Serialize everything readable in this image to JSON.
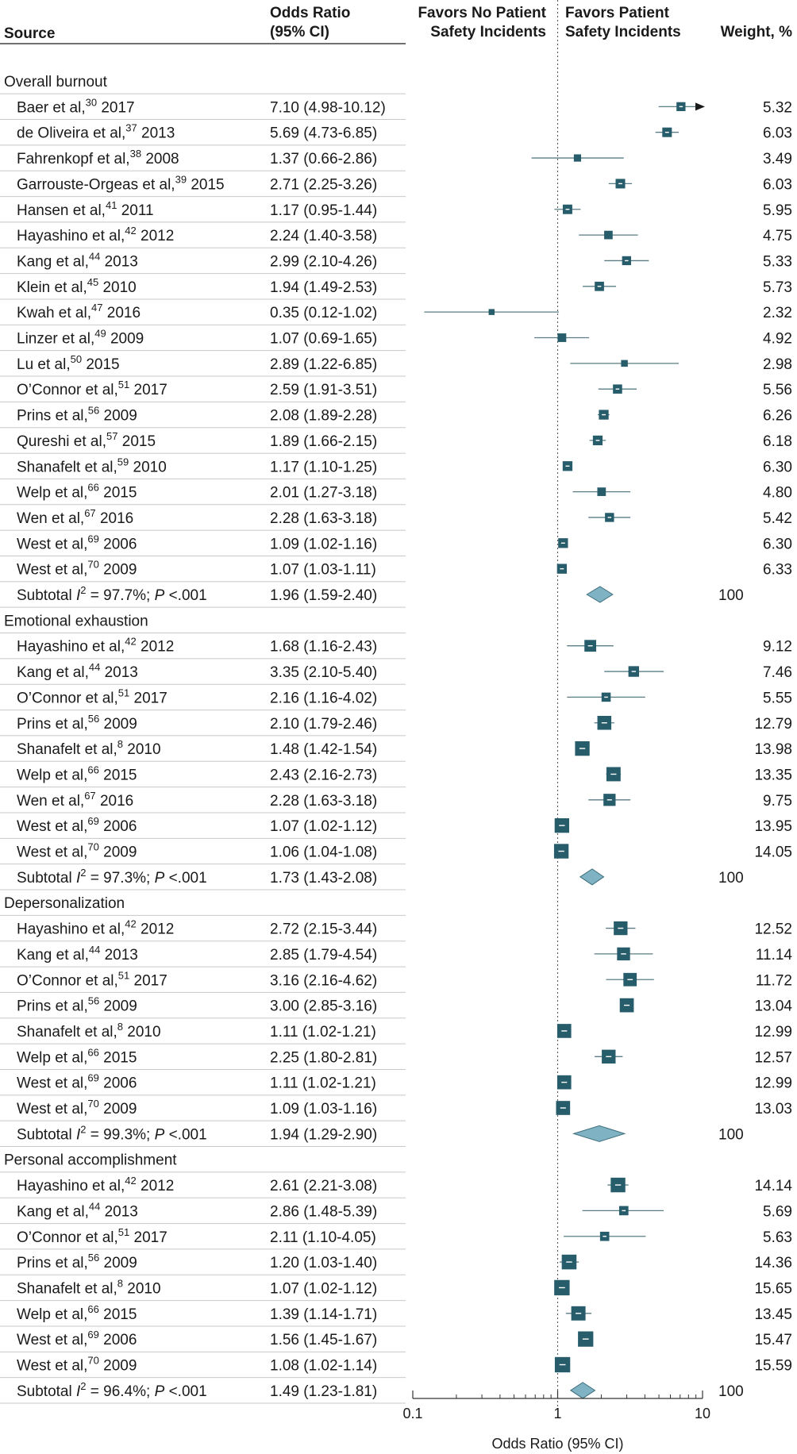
{
  "chart_data": {
    "type": "forest",
    "header": {
      "source": "Source",
      "or_line1": "Odds Ratio",
      "or_line2": "(95% CI)",
      "favors_left_line1": "Favors No Patient",
      "favors_left_line2": "Safety Incidents",
      "favors_right_line1": "Favors Patient",
      "favors_right_line2": "Safety Incidents",
      "weight": "Weight, %"
    },
    "xaxis": {
      "label": "Odds Ratio (95% CI)",
      "scale": "log",
      "ticks": [
        0.1,
        1,
        10
      ],
      "tick_labels": [
        "0.1",
        "1",
        "10"
      ],
      "range": [
        0.1,
        10
      ],
      "reference_line": 1
    },
    "groups": [
      {
        "name": "Overall burnout",
        "studies": [
          {
            "author": "Baer et al,",
            "ref": "30",
            "year": "2017",
            "or": 7.1,
            "lo": 4.98,
            "hi": 10.12,
            "ci_text": "7.10 (4.98-10.12)",
            "weight": "5.32",
            "arrow": true
          },
          {
            "author": "de Oliveira et al,",
            "ref": "37",
            "year": "2013",
            "or": 5.69,
            "lo": 4.73,
            "hi": 6.85,
            "ci_text": "5.69 (4.73-6.85)",
            "weight": "6.03"
          },
          {
            "author": "Fahrenkopf et al,",
            "ref": "38",
            "year": "2008",
            "or": 1.37,
            "lo": 0.66,
            "hi": 2.86,
            "ci_text": "1.37 (0.66-2.86)",
            "weight": "3.49"
          },
          {
            "author": "Garrouste-Orgeas et al,",
            "ref": "39",
            "year": "2015",
            "or": 2.71,
            "lo": 2.25,
            "hi": 3.26,
            "ci_text": "2.71 (2.25-3.26)",
            "weight": "6.03"
          },
          {
            "author": "Hansen et al,",
            "ref": "41",
            "year": "2011",
            "or": 1.17,
            "lo": 0.95,
            "hi": 1.44,
            "ci_text": "1.17 (0.95-1.44)",
            "weight": "5.95"
          },
          {
            "author": "Hayashino et al,",
            "ref": "42",
            "year": "2012",
            "or": 2.24,
            "lo": 1.4,
            "hi": 3.58,
            "ci_text": "2.24 (1.40-3.58)",
            "weight": "4.75"
          },
          {
            "author": "Kang et al,",
            "ref": "44",
            "year": "2013",
            "or": 2.99,
            "lo": 2.1,
            "hi": 4.26,
            "ci_text": "2.99 (2.10-4.26)",
            "weight": "5.33"
          },
          {
            "author": "Klein et al,",
            "ref": "45",
            "year": "2010",
            "or": 1.94,
            "lo": 1.49,
            "hi": 2.53,
            "ci_text": "1.94 (1.49-2.53)",
            "weight": "5.73"
          },
          {
            "author": "Kwah et al,",
            "ref": "47",
            "year": "2016",
            "or": 0.35,
            "lo": 0.12,
            "hi": 1.02,
            "ci_text": "0.35 (0.12-1.02)",
            "weight": "2.32"
          },
          {
            "author": "Linzer et al,",
            "ref": "49",
            "year": "2009",
            "or": 1.07,
            "lo": 0.69,
            "hi": 1.65,
            "ci_text": "1.07 (0.69-1.65)",
            "weight": "4.92"
          },
          {
            "author": "Lu et al,",
            "ref": "50",
            "year": "2015",
            "or": 2.89,
            "lo": 1.22,
            "hi": 6.85,
            "ci_text": "2.89 (1.22-6.85)",
            "weight": "2.98"
          },
          {
            "author": "O’Connor et al,",
            "ref": "51",
            "year": "2017",
            "or": 2.59,
            "lo": 1.91,
            "hi": 3.51,
            "ci_text": "2.59 (1.91-3.51)",
            "weight": "5.56"
          },
          {
            "author": "Prins et al,",
            "ref": "56",
            "year": "2009",
            "or": 2.08,
            "lo": 1.89,
            "hi": 2.28,
            "ci_text": "2.08 (1.89-2.28)",
            "weight": "6.26"
          },
          {
            "author": "Qureshi et al,",
            "ref": "57",
            "year": "2015",
            "or": 1.89,
            "lo": 1.66,
            "hi": 2.15,
            "ci_text": "1.89 (1.66-2.15)",
            "weight": "6.18"
          },
          {
            "author": "Shanafelt et al,",
            "ref": "59",
            "year": "2010",
            "or": 1.17,
            "lo": 1.1,
            "hi": 1.25,
            "ci_text": "1.17 (1.10-1.25)",
            "weight": "6.30"
          },
          {
            "author": "Welp et al,",
            "ref": "66",
            "year": "2015",
            "or": 2.01,
            "lo": 1.27,
            "hi": 3.18,
            "ci_text": "2.01 (1.27-3.18)",
            "weight": "4.80"
          },
          {
            "author": "Wen et al,",
            "ref": "67",
            "year": "2016",
            "or": 2.28,
            "lo": 1.63,
            "hi": 3.18,
            "ci_text": "2.28 (1.63-3.18)",
            "weight": "5.42"
          },
          {
            "author": "West et al,",
            "ref": "69",
            "year": "2006",
            "or": 1.09,
            "lo": 1.02,
            "hi": 1.16,
            "ci_text": "1.09 (1.02-1.16)",
            "weight": "6.30"
          },
          {
            "author": "West et al,",
            "ref": "70",
            "year": "2009",
            "or": 1.07,
            "lo": 1.03,
            "hi": 1.11,
            "ci_text": "1.07 (1.03-1.11)",
            "weight": "6.33"
          }
        ],
        "subtotal": {
          "i2": "97.7%",
          "p": "<.001",
          "or": 1.96,
          "lo": 1.59,
          "hi": 2.4,
          "ci_text": "1.96 (1.59-2.40)",
          "weight": "100"
        }
      },
      {
        "name": "Emotional exhaustion",
        "studies": [
          {
            "author": "Hayashino et al,",
            "ref": "42",
            "year": "2012",
            "or": 1.68,
            "lo": 1.16,
            "hi": 2.43,
            "ci_text": "1.68 (1.16-2.43)",
            "weight": "9.12"
          },
          {
            "author": "Kang et al,",
            "ref": "44",
            "year": "2013",
            "or": 3.35,
            "lo": 2.1,
            "hi": 5.4,
            "ci_text": "3.35 (2.10-5.40)",
            "weight": "7.46"
          },
          {
            "author": "O’Connor et al,",
            "ref": "51",
            "year": "2017",
            "or": 2.16,
            "lo": 1.16,
            "hi": 4.02,
            "ci_text": "2.16 (1.16-4.02)",
            "weight": "5.55"
          },
          {
            "author": "Prins et al,",
            "ref": "56",
            "year": "2009",
            "or": 2.1,
            "lo": 1.79,
            "hi": 2.46,
            "ci_text": "2.10 (1.79-2.46)",
            "weight": "12.79"
          },
          {
            "author": "Shanafelt et al,",
            "ref": "8",
            "year": "2010",
            "or": 1.48,
            "lo": 1.42,
            "hi": 1.54,
            "ci_text": "1.48 (1.42-1.54)",
            "weight": "13.98"
          },
          {
            "author": "Welp et al,",
            "ref": "66",
            "year": "2015",
            "or": 2.43,
            "lo": 2.16,
            "hi": 2.73,
            "ci_text": "2.43 (2.16-2.73)",
            "weight": "13.35"
          },
          {
            "author": "Wen et al,",
            "ref": "67",
            "year": "2016",
            "or": 2.28,
            "lo": 1.63,
            "hi": 3.18,
            "ci_text": "2.28 (1.63-3.18)",
            "weight": "9.75"
          },
          {
            "author": "West et al,",
            "ref": "69",
            "year": "2006",
            "or": 1.07,
            "lo": 1.02,
            "hi": 1.12,
            "ci_text": "1.07 (1.02-1.12)",
            "weight": "13.95"
          },
          {
            "author": "West et al,",
            "ref": "70",
            "year": "2009",
            "or": 1.06,
            "lo": 1.04,
            "hi": 1.08,
            "ci_text": "1.06 (1.04-1.08)",
            "weight": "14.05"
          }
        ],
        "subtotal": {
          "i2": "97.3%",
          "p": "<.001",
          "or": 1.73,
          "lo": 1.43,
          "hi": 2.08,
          "ci_text": "1.73 (1.43-2.08)",
          "weight": "100"
        }
      },
      {
        "name": "Depersonalization",
        "studies": [
          {
            "author": "Hayashino et al,",
            "ref": "42",
            "year": "2012",
            "or": 2.72,
            "lo": 2.15,
            "hi": 3.44,
            "ci_text": "2.72 (2.15-3.44)",
            "weight": "12.52"
          },
          {
            "author": "Kang et al,",
            "ref": "44",
            "year": "2013",
            "or": 2.85,
            "lo": 1.79,
            "hi": 4.54,
            "ci_text": "2.85 (1.79-4.54)",
            "weight": "11.14"
          },
          {
            "author": "O’Connor et al,",
            "ref": "51",
            "year": "2017",
            "or": 3.16,
            "lo": 2.16,
            "hi": 4.62,
            "ci_text": "3.16 (2.16-4.62)",
            "weight": "11.72"
          },
          {
            "author": "Prins et al,",
            "ref": "56",
            "year": "2009",
            "or": 3.0,
            "lo": 2.85,
            "hi": 3.16,
            "ci_text": "3.00 (2.85-3.16)",
            "weight": "13.04"
          },
          {
            "author": "Shanafelt et al,",
            "ref": "8",
            "year": "2010",
            "or": 1.11,
            "lo": 1.02,
            "hi": 1.21,
            "ci_text": "1.11 (1.02-1.21)",
            "weight": "12.99"
          },
          {
            "author": "Welp et al,",
            "ref": "66",
            "year": "2015",
            "or": 2.25,
            "lo": 1.8,
            "hi": 2.81,
            "ci_text": "2.25 (1.80-2.81)",
            "weight": "12.57"
          },
          {
            "author": "West et al,",
            "ref": "69",
            "year": "2006",
            "or": 1.11,
            "lo": 1.02,
            "hi": 1.21,
            "ci_text": "1.11 (1.02-1.21)",
            "weight": "12.99"
          },
          {
            "author": "West et al,",
            "ref": "70",
            "year": "2009",
            "or": 1.09,
            "lo": 1.03,
            "hi": 1.16,
            "ci_text": "1.09 (1.03-1.16)",
            "weight": "13.03"
          }
        ],
        "subtotal": {
          "i2": "99.3%",
          "p": "<.001",
          "or": 1.94,
          "lo": 1.29,
          "hi": 2.9,
          "ci_text": "1.94 (1.29-2.90)",
          "weight": "100"
        }
      },
      {
        "name": "Personal accomplishment",
        "studies": [
          {
            "author": "Hayashino et al,",
            "ref": "42",
            "year": "2012",
            "or": 2.61,
            "lo": 2.21,
            "hi": 3.08,
            "ci_text": "2.61 (2.21-3.08)",
            "weight": "14.14"
          },
          {
            "author": "Kang et al,",
            "ref": "44",
            "year": "2013",
            "or": 2.86,
            "lo": 1.48,
            "hi": 5.39,
            "ci_text": "2.86 (1.48-5.39)",
            "weight": "5.69"
          },
          {
            "author": "O’Connor et al,",
            "ref": "51",
            "year": "2017",
            "or": 2.11,
            "lo": 1.1,
            "hi": 4.05,
            "ci_text": "2.11 (1.10-4.05)",
            "weight": "5.63"
          },
          {
            "author": "Prins et al,",
            "ref": "56",
            "year": "2009",
            "or": 1.2,
            "lo": 1.03,
            "hi": 1.4,
            "ci_text": "1.20 (1.03-1.40)",
            "weight": "14.36"
          },
          {
            "author": "Shanafelt et al,",
            "ref": "8",
            "year": "2010",
            "or": 1.07,
            "lo": 1.02,
            "hi": 1.12,
            "ci_text": "1.07 (1.02-1.12)",
            "weight": "15.65"
          },
          {
            "author": "Welp et al,",
            "ref": "66",
            "year": "2015",
            "or": 1.39,
            "lo": 1.14,
            "hi": 1.71,
            "ci_text": "1.39 (1.14-1.71)",
            "weight": "13.45"
          },
          {
            "author": "West et al,",
            "ref": "69",
            "year": "2006",
            "or": 1.56,
            "lo": 1.45,
            "hi": 1.67,
            "ci_text": "1.56 (1.45-1.67)",
            "weight": "15.47"
          },
          {
            "author": "West et al,",
            "ref": "70",
            "year": "2009",
            "or": 1.08,
            "lo": 1.02,
            "hi": 1.14,
            "ci_text": "1.08 (1.02-1.14)",
            "weight": "15.59"
          }
        ],
        "subtotal": {
          "i2": "96.4%",
          "p": "<.001",
          "or": 1.49,
          "lo": 1.23,
          "hi": 1.81,
          "ci_text": "1.49 (1.23-1.81)",
          "weight": "100"
        }
      }
    ],
    "subtotal_label": "Subtotal",
    "colors": {
      "marker": "#275d6b",
      "diamond": "#7fb3c4",
      "diamond_stroke": "#3f6f7d",
      "ci_line": "#5a7d86",
      "reference_line": "#555555",
      "row_divider": "#c8c8c8",
      "text": "#1a1a1a"
    }
  }
}
